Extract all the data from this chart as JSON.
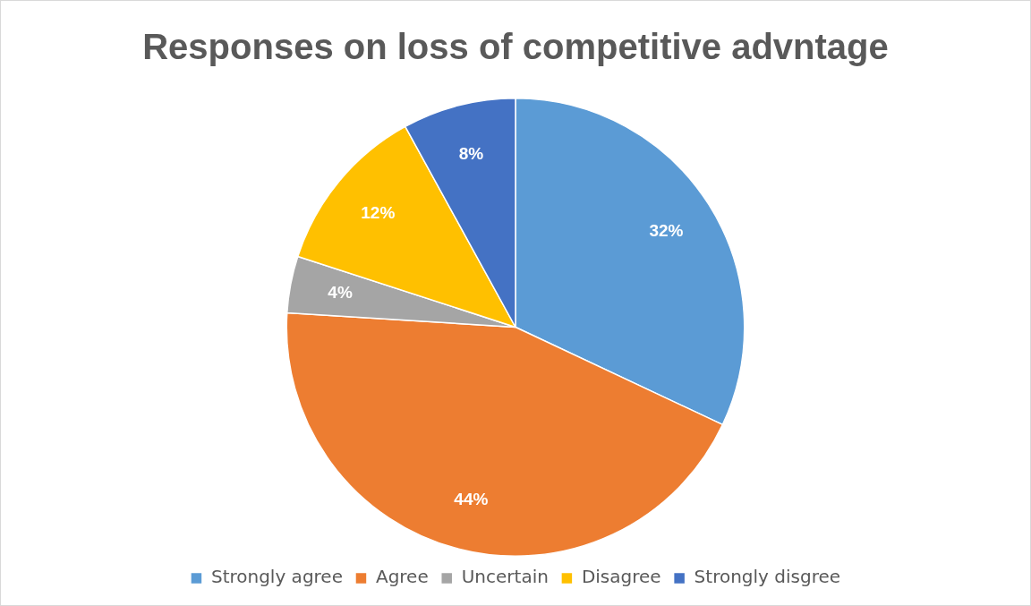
{
  "chart_data": {
    "type": "pie",
    "title": "Responses on loss of competitive advntage",
    "categories": [
      "Strongly agree",
      "Agree",
      "Uncertain",
      "Disagree",
      "Strongly disgree"
    ],
    "values": [
      32,
      44,
      4,
      12,
      8
    ],
    "colors": [
      "#5b9bd5",
      "#ed7d31",
      "#a5a5a5",
      "#ffc000",
      "#4472c4"
    ],
    "value_labels": [
      "32%",
      "44%",
      "4%",
      "12%",
      "8%"
    ],
    "legend": "bottom"
  }
}
